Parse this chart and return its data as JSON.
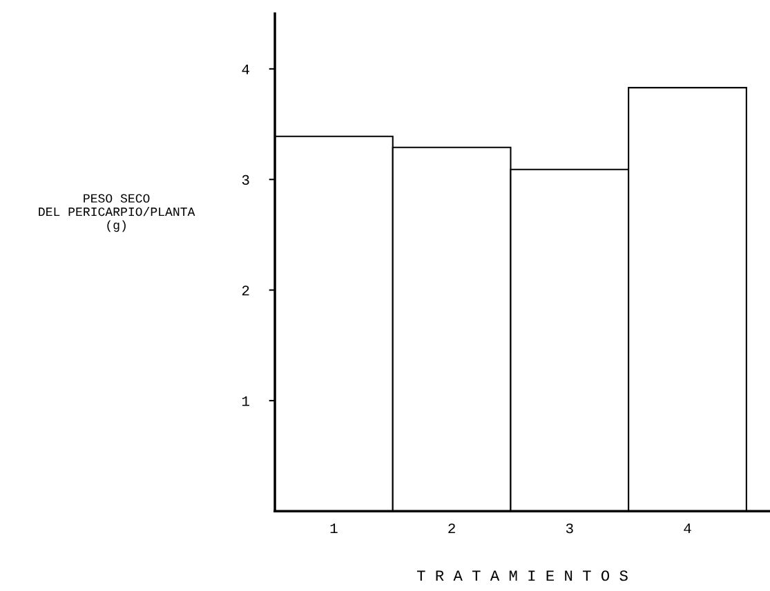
{
  "chart_data": {
    "type": "bar",
    "xlabel": "T R A T A M I E N T O S",
    "ylabel": "PESO SECO\nDEL PERICARPIO/PLANTA\n(g)",
    "categories": [
      "1",
      "2",
      "3",
      "4"
    ],
    "values": [
      3.39,
      3.29,
      3.09,
      3.83
    ],
    "color": "#ffffff",
    "ylim": [
      0,
      4.5
    ],
    "yticks": [
      1,
      2,
      3,
      4
    ],
    "grid": false,
    "legend": false
  }
}
